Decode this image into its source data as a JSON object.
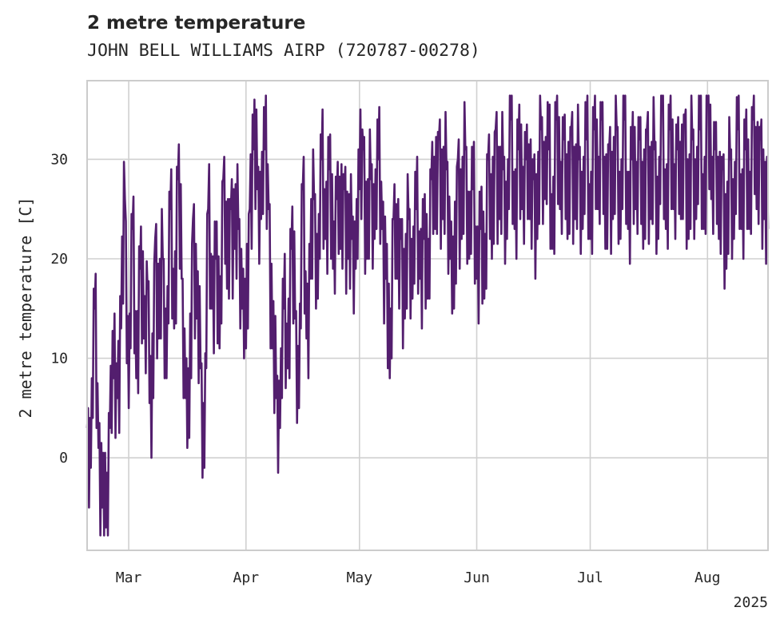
{
  "chart_data": {
    "type": "line",
    "title": "2 metre temperature",
    "subtitle": "JOHN BELL WILLIAMS AIRP (720787-00278)",
    "xlabel": "",
    "ylabel": "2 metre temperature [C]",
    "x_range": [
      "2025-02-18",
      "2025-08-17"
    ],
    "ylim": [
      -9.3,
      37.9
    ],
    "grid": true,
    "legend": "none",
    "line_color": "#531e6e",
    "x_ticks": [
      {
        "label": "Mar",
        "date": "2025-03-01"
      },
      {
        "label": "Apr",
        "date": "2025-04-01"
      },
      {
        "label": "May",
        "date": "2025-05-01"
      },
      {
        "label": "Jun",
        "date": "2025-06-01"
      },
      {
        "label": "Jul",
        "date": "2025-07-01"
      },
      {
        "label": "Aug",
        "date": "2025-08-01"
      }
    ],
    "x_year_label": "2025",
    "y_ticks": [
      0,
      10,
      20,
      30
    ],
    "series": [
      {
        "points": [
          [
            "2025-02-18",
            3
          ],
          [
            "2025-02-19",
            -1
          ],
          [
            "2025-02-20",
            15
          ],
          [
            "2025-02-21",
            1
          ],
          [
            "2025-02-22",
            -5
          ],
          [
            "2025-02-23",
            -7
          ],
          [
            "2025-02-24",
            3
          ],
          [
            "2025-02-25",
            8
          ],
          [
            "2025-02-26",
            6
          ],
          [
            "2025-02-27",
            13
          ],
          [
            "2025-02-28",
            26
          ],
          [
            "2025-03-01",
            5
          ],
          [
            "2025-03-02",
            23
          ],
          [
            "2025-03-03",
            8
          ],
          [
            "2025-03-04",
            19
          ],
          [
            "2025-03-05",
            12
          ],
          [
            "2025-03-06",
            17
          ],
          [
            "2025-03-07",
            0
          ],
          [
            "2025-03-08",
            22
          ],
          [
            "2025-03-09",
            12
          ],
          [
            "2025-03-10",
            20
          ],
          [
            "2025-03-11",
            8
          ],
          [
            "2025-03-12",
            25
          ],
          [
            "2025-03-13",
            13
          ],
          [
            "2025-03-14",
            28
          ],
          [
            "2025-03-15",
            18
          ],
          [
            "2025-03-16",
            6
          ],
          [
            "2025-03-17",
            2
          ],
          [
            "2025-03-18",
            24
          ],
          [
            "2025-03-19",
            14
          ],
          [
            "2025-03-20",
            9
          ],
          [
            "2025-03-21",
            -1
          ],
          [
            "2025-03-22",
            25
          ],
          [
            "2025-03-23",
            15
          ],
          [
            "2025-03-24",
            20
          ],
          [
            "2025-03-25",
            11
          ],
          [
            "2025-03-26",
            28
          ],
          [
            "2025-03-27",
            17
          ],
          [
            "2025-03-28",
            25
          ],
          [
            "2025-03-29",
            21
          ],
          [
            "2025-03-30",
            23
          ],
          [
            "2025-03-31",
            15
          ],
          [
            "2025-04-01",
            11
          ],
          [
            "2025-04-02",
            25
          ],
          [
            "2025-04-03",
            31
          ],
          [
            "2025-04-04",
            27
          ],
          [
            "2025-04-05",
            24
          ],
          [
            "2025-04-06",
            31
          ],
          [
            "2025-04-07",
            25
          ],
          [
            "2025-04-08",
            11
          ],
          [
            "2025-04-09",
            6
          ],
          [
            "2025-04-10",
            3
          ],
          [
            "2025-04-11",
            15
          ],
          [
            "2025-04-12",
            9
          ],
          [
            "2025-04-13",
            21
          ],
          [
            "2025-04-14",
            14
          ],
          [
            "2025-04-15",
            5
          ],
          [
            "2025-04-16",
            27
          ],
          [
            "2025-04-17",
            12
          ],
          [
            "2025-04-18",
            18
          ],
          [
            "2025-04-19",
            26
          ],
          [
            "2025-04-20",
            16
          ],
          [
            "2025-04-21",
            30
          ],
          [
            "2025-04-22",
            22
          ],
          [
            "2025-04-23",
            29
          ],
          [
            "2025-04-24",
            19
          ],
          [
            "2025-04-25",
            26
          ],
          [
            "2025-04-26",
            21
          ],
          [
            "2025-04-27",
            27
          ],
          [
            "2025-04-28",
            20
          ],
          [
            "2025-04-29",
            22
          ],
          [
            "2025-04-30",
            19
          ],
          [
            "2025-05-01",
            27
          ],
          [
            "2025-05-02",
            31
          ],
          [
            "2025-05-03",
            20
          ],
          [
            "2025-05-04",
            28
          ],
          [
            "2025-05-05",
            22
          ],
          [
            "2025-05-06",
            30
          ],
          [
            "2025-05-07",
            23
          ],
          [
            "2025-05-08",
            18
          ],
          [
            "2025-05-09",
            8
          ],
          [
            "2025-05-10",
            24
          ],
          [
            "2025-05-11",
            18
          ],
          [
            "2025-05-12",
            22
          ],
          [
            "2025-05-13",
            14
          ],
          [
            "2025-05-14",
            24
          ],
          [
            "2025-05-15",
            16
          ],
          [
            "2025-05-16",
            25
          ],
          [
            "2025-05-17",
            18
          ],
          [
            "2025-05-18",
            22
          ],
          [
            "2025-05-19",
            16
          ],
          [
            "2025-05-20",
            28
          ],
          [
            "2025-05-21",
            23
          ],
          [
            "2025-05-22",
            32
          ],
          [
            "2025-05-23",
            24
          ],
          [
            "2025-05-24",
            29
          ],
          [
            "2025-05-25",
            20
          ],
          [
            "2025-05-26",
            15
          ],
          [
            "2025-05-27",
            30
          ],
          [
            "2025-05-28",
            22
          ],
          [
            "2025-05-29",
            31
          ],
          [
            "2025-05-30",
            20
          ],
          [
            "2025-05-31",
            27
          ],
          [
            "2025-06-01",
            18
          ],
          [
            "2025-06-02",
            23
          ],
          [
            "2025-06-03",
            16
          ],
          [
            "2025-06-04",
            30
          ],
          [
            "2025-06-05",
            20
          ],
          [
            "2025-06-06",
            33
          ],
          [
            "2025-06-07",
            24
          ],
          [
            "2025-06-08",
            29
          ],
          [
            "2025-06-09",
            22
          ],
          [
            "2025-06-10",
            34
          ],
          [
            "2025-06-11",
            23
          ],
          [
            "2025-06-12",
            31
          ],
          [
            "2025-06-13",
            25
          ],
          [
            "2025-06-14",
            30
          ],
          [
            "2025-06-15",
            24
          ],
          [
            "2025-06-16",
            28
          ],
          [
            "2025-06-17",
            22
          ],
          [
            "2025-06-18",
            33
          ],
          [
            "2025-06-19",
            26
          ],
          [
            "2025-06-20",
            31
          ],
          [
            "2025-06-21",
            21
          ],
          [
            "2025-06-22",
            34
          ],
          [
            "2025-06-23",
            25
          ],
          [
            "2025-06-24",
            32
          ],
          [
            "2025-06-25",
            22
          ],
          [
            "2025-06-26",
            33
          ],
          [
            "2025-06-27",
            24
          ],
          [
            "2025-06-28",
            30
          ],
          [
            "2025-06-29",
            23
          ],
          [
            "2025-06-30",
            32
          ],
          [
            "2025-07-01",
            22
          ],
          [
            "2025-07-02",
            33
          ],
          [
            "2025-07-03",
            25
          ],
          [
            "2025-07-04",
            34
          ],
          [
            "2025-07-05",
            21
          ],
          [
            "2025-07-06",
            31
          ],
          [
            "2025-07-07",
            24
          ],
          [
            "2025-07-08",
            33
          ],
          [
            "2025-07-09",
            22
          ],
          [
            "2025-07-10",
            34
          ],
          [
            "2025-07-11",
            23
          ],
          [
            "2025-07-12",
            30
          ],
          [
            "2025-07-13",
            25
          ],
          [
            "2025-07-14",
            32
          ],
          [
            "2025-07-15",
            21
          ],
          [
            "2025-07-16",
            33
          ],
          [
            "2025-07-17",
            24
          ],
          [
            "2025-07-18",
            31
          ],
          [
            "2025-07-19",
            22
          ],
          [
            "2025-07-20",
            35
          ],
          [
            "2025-07-21",
            23
          ],
          [
            "2025-07-22",
            33
          ],
          [
            "2025-07-23",
            25
          ],
          [
            "2025-07-24",
            31
          ],
          [
            "2025-07-25",
            24
          ],
          [
            "2025-07-26",
            34
          ],
          [
            "2025-07-27",
            22
          ],
          [
            "2025-07-28",
            32
          ],
          [
            "2025-07-29",
            24
          ],
          [
            "2025-07-30",
            33
          ],
          [
            "2025-07-31",
            23
          ],
          [
            "2025-08-01",
            36
          ],
          [
            "2025-08-02",
            26
          ],
          [
            "2025-08-03",
            31
          ],
          [
            "2025-08-04",
            22
          ],
          [
            "2025-08-05",
            29
          ],
          [
            "2025-08-06",
            19
          ],
          [
            "2025-08-07",
            30
          ],
          [
            "2025-08-08",
            22
          ],
          [
            "2025-08-09",
            33
          ],
          [
            "2025-08-10",
            23
          ],
          [
            "2025-08-11",
            31
          ],
          [
            "2025-08-12",
            23
          ],
          [
            "2025-08-13",
            34
          ],
          [
            "2025-08-14",
            25
          ],
          [
            "2025-08-15",
            32
          ],
          [
            "2025-08-16",
            24
          ],
          [
            "2025-08-17",
            23
          ]
        ]
      }
    ]
  }
}
